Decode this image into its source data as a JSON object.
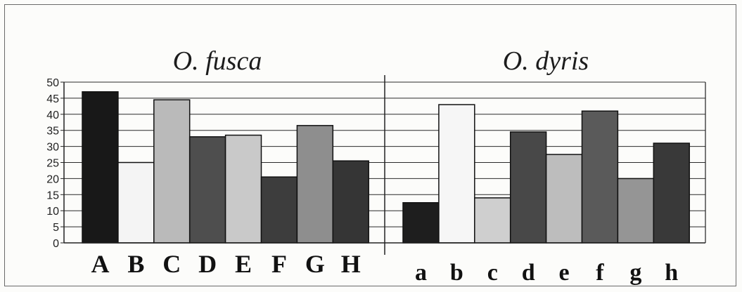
{
  "chart_data": {
    "type": "bar",
    "ylim": [
      0,
      50
    ],
    "yticks": [
      0,
      5,
      10,
      15,
      20,
      25,
      30,
      35,
      40,
      45,
      50
    ],
    "grid": true,
    "legend": "none",
    "panels": [
      {
        "title": "O. fusca",
        "categories": [
          "A",
          "B",
          "C",
          "D",
          "E",
          "F",
          "G",
          "H"
        ],
        "values": [
          47,
          25,
          44.5,
          33,
          33.5,
          20.5,
          36.5,
          25.5
        ],
        "colors": [
          "#181818",
          "#f4f4f4",
          "#bababa",
          "#4e4e4e",
          "#c9c9c9",
          "#3d3d3d",
          "#8e8e8e",
          "#353535"
        ]
      },
      {
        "title": "O. dyris",
        "categories": [
          "a",
          "b",
          "c",
          "d",
          "e",
          "f",
          "g",
          "h"
        ],
        "values": [
          12.5,
          43,
          14,
          34.5,
          27.5,
          41,
          20,
          31
        ],
        "colors": [
          "#1e1e1e",
          "#f6f6f6",
          "#cfcfcf",
          "#484848",
          "#bdbdbd",
          "#5a5a5a",
          "#959595",
          "#393939"
        ]
      }
    ]
  }
}
